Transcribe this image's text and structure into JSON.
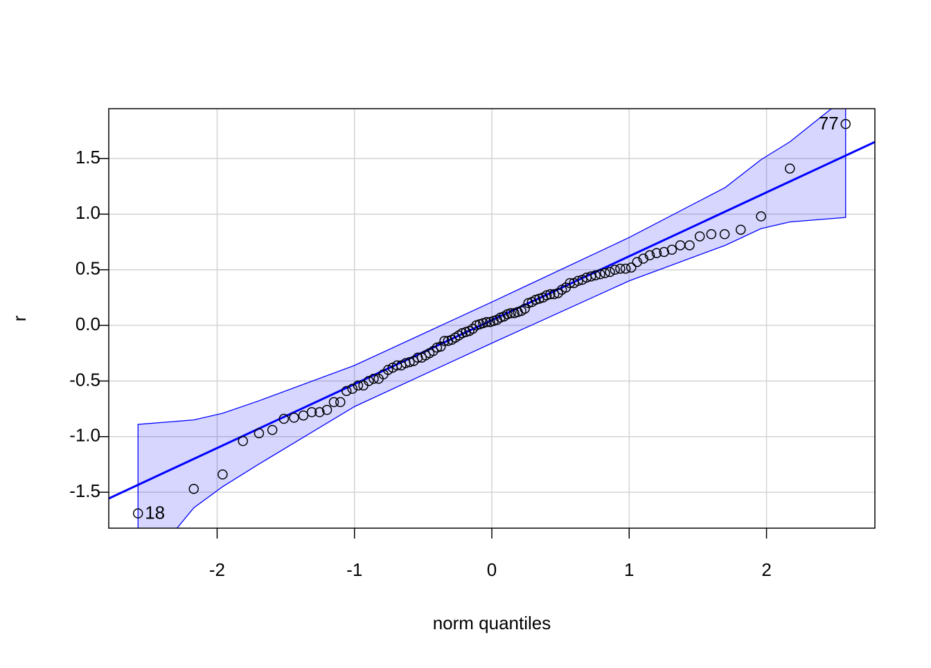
{
  "chart_data": {
    "type": "qqplot",
    "x_label": "norm quantiles",
    "y_label": "r",
    "xlim": [
      -2.789,
      2.789
    ],
    "ylim": [
      -1.823,
      1.948
    ],
    "xticks": [
      -2,
      -1,
      0,
      1,
      2
    ],
    "yticks": [
      {
        "value": -1.5,
        "label": "-1.5"
      },
      {
        "value": -1,
        "label": "-1.0"
      },
      {
        "value": -0.5,
        "label": "-0.5"
      },
      {
        "value": 0,
        "label": "0.0"
      },
      {
        "value": 0.5,
        "label": "0.5"
      },
      {
        "value": 1,
        "label": "1.0"
      },
      {
        "value": 1.5,
        "label": "1.5"
      }
    ],
    "grid": true,
    "color": "#000000",
    "x": [
      -2.576,
      -2.17,
      -1.96,
      -1.812,
      -1.695,
      -1.598,
      -1.514,
      -1.44,
      -1.372,
      -1.311,
      -1.254,
      -1.2,
      -1.15,
      -1.103,
      -1.058,
      -1.015,
      -0.974,
      -0.935,
      -0.896,
      -0.86,
      -0.824,
      -0.789,
      -0.755,
      -0.722,
      -0.69,
      -0.659,
      -0.628,
      -0.598,
      -0.568,
      -0.539,
      -0.51,
      -0.482,
      -0.454,
      -0.426,
      -0.399,
      -0.372,
      -0.345,
      -0.319,
      -0.292,
      -0.266,
      -0.24,
      -0.215,
      -0.189,
      -0.164,
      -0.138,
      -0.113,
      -0.088,
      -0.063,
      -0.038,
      -0.013,
      0.013,
      0.038,
      0.063,
      0.088,
      0.113,
      0.138,
      0.164,
      0.189,
      0.215,
      0.24,
      0.266,
      0.292,
      0.319,
      0.345,
      0.372,
      0.399,
      0.426,
      0.454,
      0.482,
      0.51,
      0.539,
      0.568,
      0.598,
      0.628,
      0.659,
      0.69,
      0.722,
      0.755,
      0.789,
      0.824,
      0.86,
      0.896,
      0.935,
      0.974,
      1.015,
      1.058,
      1.103,
      1.15,
      1.2,
      1.254,
      1.311,
      1.372,
      1.44,
      1.514,
      1.598,
      1.695,
      1.812,
      1.96,
      2.17,
      2.576
    ],
    "values": [
      -1.69,
      -1.47,
      -1.34,
      -1.04,
      -0.97,
      -0.94,
      -0.84,
      -0.83,
      -0.81,
      -0.78,
      -0.78,
      -0.76,
      -0.69,
      -0.69,
      -0.59,
      -0.57,
      -0.54,
      -0.54,
      -0.5,
      -0.48,
      -0.48,
      -0.44,
      -0.4,
      -0.38,
      -0.36,
      -0.36,
      -0.34,
      -0.33,
      -0.32,
      -0.29,
      -0.29,
      -0.27,
      -0.25,
      -0.23,
      -0.2,
      -0.19,
      -0.14,
      -0.14,
      -0.13,
      -0.11,
      -0.09,
      -0.07,
      -0.06,
      -0.05,
      -0.03,
      0.0,
      0.01,
      0.02,
      0.03,
      0.03,
      0.04,
      0.05,
      0.07,
      0.08,
      0.1,
      0.11,
      0.11,
      0.12,
      0.13,
      0.15,
      0.2,
      0.21,
      0.23,
      0.24,
      0.25,
      0.27,
      0.28,
      0.28,
      0.29,
      0.32,
      0.34,
      0.38,
      0.38,
      0.4,
      0.41,
      0.43,
      0.44,
      0.45,
      0.46,
      0.47,
      0.48,
      0.5,
      0.51,
      0.51,
      0.52,
      0.57,
      0.6,
      0.63,
      0.65,
      0.66,
      0.68,
      0.72,
      0.72,
      0.8,
      0.82,
      0.82,
      0.86,
      0.98,
      1.41,
      1.81
    ],
    "fit_line": {
      "x": [
        -2.789,
        2.789
      ],
      "y": [
        -1.556,
        1.649
      ],
      "color": "#0000ff"
    },
    "band": {
      "x": [
        -2.576,
        -2.17,
        -1.96,
        -1.7,
        -1.0,
        0,
        1.0,
        1.7,
        1.96,
        2.17,
        2.576
      ],
      "upper": [
        -0.89,
        -0.85,
        -0.79,
        -0.68,
        -0.36,
        0.21,
        0.79,
        1.24,
        1.49,
        1.65,
        2.05
      ],
      "lower": [
        -2.25,
        -1.64,
        -1.45,
        -1.25,
        -0.73,
        -0.16,
        0.4,
        0.72,
        0.87,
        0.93,
        0.97
      ],
      "color": "#0000ff"
    },
    "point_labels": [
      {
        "index": 99,
        "label": "77",
        "side": "left"
      },
      {
        "index": 0,
        "label": "18",
        "side": "right"
      }
    ]
  }
}
